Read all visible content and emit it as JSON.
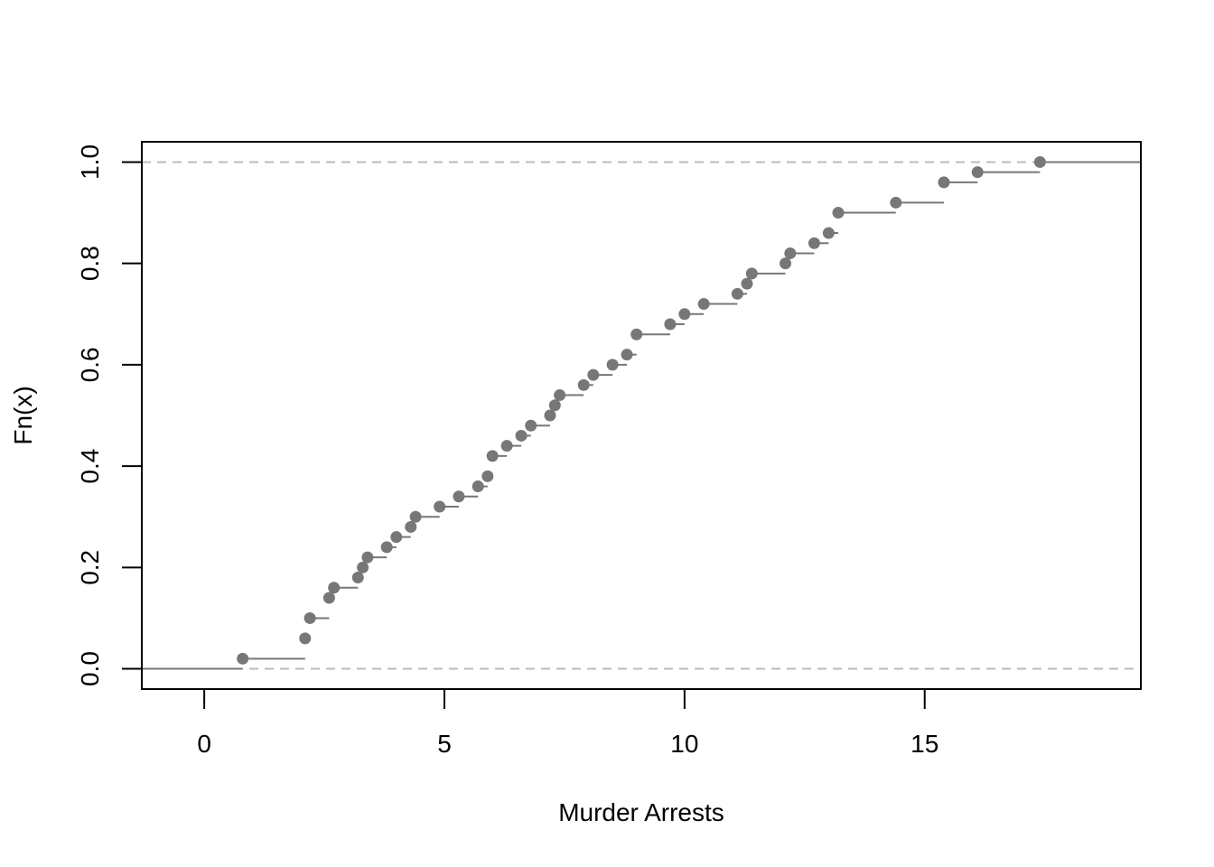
{
  "chart_data": {
    "type": "ecdf",
    "title": "",
    "xlabel": "Murder Arrests",
    "ylabel": "Fn(x)",
    "xlim": [
      -1.3,
      19.5
    ],
    "ylim": [
      -0.04,
      1.04
    ],
    "x_ticks": [
      0,
      5,
      10,
      15
    ],
    "y_ticks": [
      0.0,
      0.2,
      0.4,
      0.6,
      0.8,
      1.0
    ],
    "x_tick_labels": [
      "0",
      "5",
      "10",
      "15"
    ],
    "y_tick_labels": [
      "0.0",
      "0.2",
      "0.4",
      "0.6",
      "0.8",
      "1.0"
    ],
    "reference_lines": [
      0,
      1
    ],
    "step_x": [
      0.8,
      2.1,
      2.2,
      2.6,
      2.7,
      3.2,
      3.3,
      3.4,
      3.8,
      4.0,
      4.3,
      4.4,
      4.9,
      5.3,
      5.7,
      5.9,
      6.0,
      6.3,
      6.6,
      6.8,
      7.2,
      7.3,
      7.4,
      7.9,
      8.1,
      8.5,
      8.8,
      9.0,
      9.7,
      10.0,
      10.4,
      11.1,
      11.3,
      11.4,
      12.1,
      12.2,
      12.7,
      13.0,
      13.2,
      14.4,
      15.4,
      16.1,
      17.4
    ],
    "step_y": [
      0.02,
      0.06,
      0.1,
      0.14,
      0.16,
      0.18,
      0.2,
      0.22,
      0.24,
      0.26,
      0.28,
      0.3,
      0.32,
      0.34,
      0.36,
      0.38,
      0.42,
      0.44,
      0.46,
      0.48,
      0.5,
      0.52,
      0.54,
      0.56,
      0.58,
      0.6,
      0.62,
      0.66,
      0.68,
      0.7,
      0.72,
      0.74,
      0.76,
      0.78,
      0.8,
      0.82,
      0.84,
      0.86,
      0.9,
      0.92,
      0.96,
      0.98,
      1.0
    ],
    "colors": {
      "points": "#777777",
      "steps": "#777777",
      "reference": "#bbbbbb",
      "frame": "#000000"
    }
  }
}
